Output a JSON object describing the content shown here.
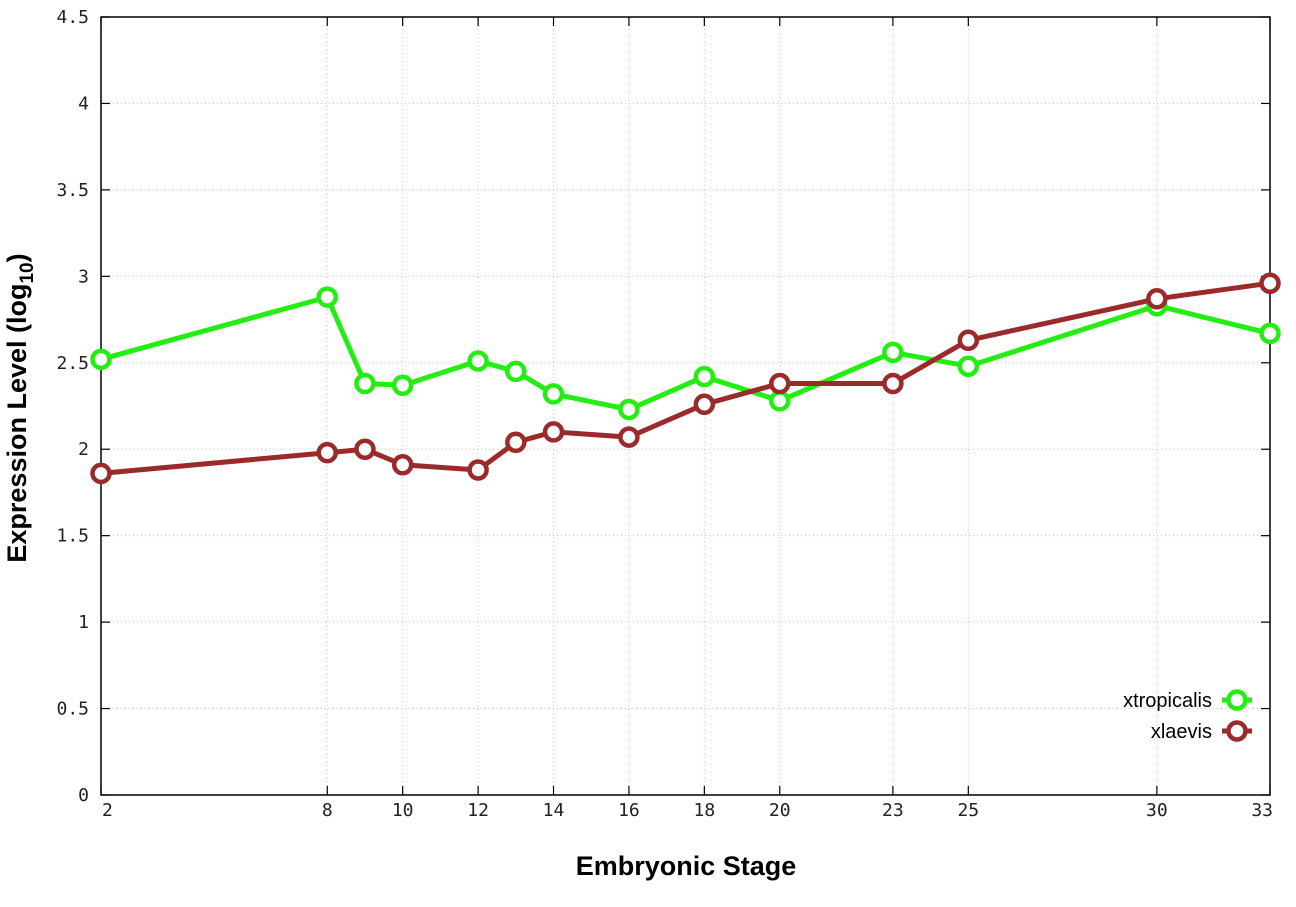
{
  "chart_data": {
    "type": "line",
    "xlabel": "Embryonic Stage",
    "ylabel_main": "Expression Level (log",
    "ylabel_sub": "10",
    "ylabel_close": ")",
    "xlim": [
      2,
      33
    ],
    "ylim": [
      0,
      4.5
    ],
    "grid": true,
    "legend_position": "bottom-right",
    "x_ticks": [
      2,
      8,
      10,
      12,
      14,
      16,
      18,
      20,
      23,
      25,
      30,
      33
    ],
    "x_tick_labels": [
      "2",
      "8",
      "10",
      "12",
      "14",
      "16",
      "18",
      "20",
      "23",
      "25",
      "30",
      "33"
    ],
    "y_ticks": [
      0,
      0.5,
      1,
      1.5,
      2,
      2.5,
      3,
      3.5,
      4,
      4.5
    ],
    "y_tick_labels": [
      "0",
      "0.5",
      "1",
      "1.5",
      "2",
      "2.5",
      "3",
      "3.5",
      "4",
      "4.5"
    ],
    "x": [
      2,
      8,
      9,
      10,
      12,
      13,
      14,
      16,
      18,
      20,
      23,
      25,
      30,
      33
    ],
    "series": [
      {
        "name": "xtropicalis",
        "color": "#22ee11",
        "values": [
          2.52,
          2.88,
          2.38,
          2.37,
          2.51,
          2.45,
          2.32,
          2.23,
          2.42,
          2.28,
          2.56,
          2.48,
          2.83,
          2.67
        ]
      },
      {
        "name": "xlaevis",
        "color": "#9b2a2a",
        "values": [
          1.86,
          1.98,
          2.0,
          1.91,
          1.88,
          2.04,
          2.1,
          2.07,
          2.26,
          2.38,
          2.38,
          2.63,
          2.87,
          2.96
        ]
      }
    ]
  }
}
